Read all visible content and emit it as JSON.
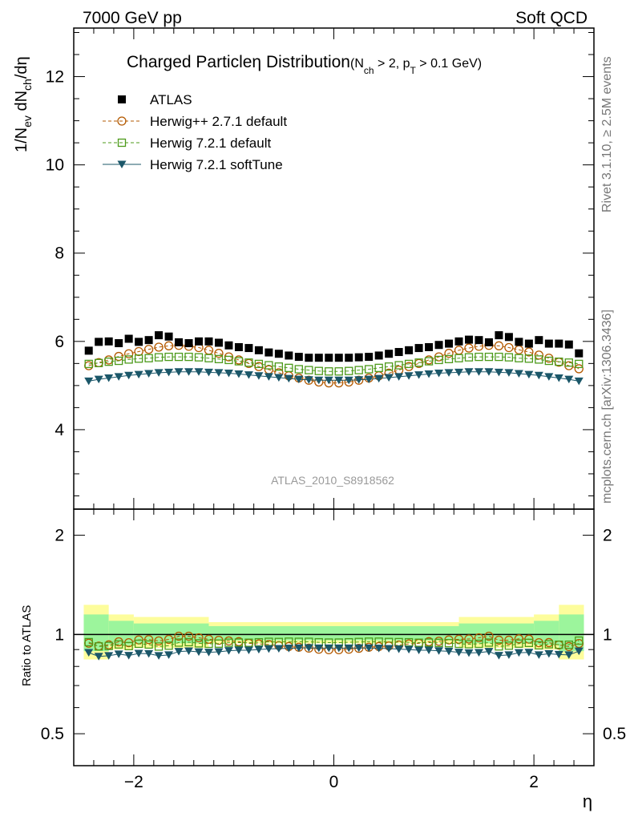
{
  "header": {
    "left": "7000 GeV pp",
    "right": "Soft QCD"
  },
  "side_text": {
    "rivet": "Rivet 3.1.10, ≥ 2.5M events",
    "mcplots": "mcplots.cern.ch [arXiv:1306.3436]"
  },
  "watermark": "ATLAS_2010_S8918562",
  "colors": {
    "atlas": "#000000",
    "herwigpp": "#b35900",
    "herwig721": "#4c9a1a",
    "softtune": "#1b5769",
    "band_outer": "#fdfd9c",
    "band_inner": "#9cf59c"
  },
  "chart_data": [
    {
      "type": "scatter",
      "panel": "main",
      "title_main": "Charged Particle",
      "title_eta": "η",
      "title_rest": " Distribution",
      "title_sub": "(N",
      "title_sub2": "ch",
      "title_sub3": " > 2, p",
      "title_sub4": "T",
      "title_sub5": " > 0.1 GeV)",
      "xlabel": "η",
      "ylabel": "1/N_ev dN_ch/dη",
      "xlim": [
        -2.6,
        2.6
      ],
      "ylim": [
        2.2,
        13.1
      ],
      "yticks": [
        4,
        6,
        8,
        10,
        12
      ],
      "ytick_labels": [
        "4",
        "6",
        "8",
        "10",
        "12"
      ],
      "xticks": [
        -2,
        0,
        2
      ],
      "xtick_labels": [
        "−2",
        "0",
        "2"
      ],
      "legend_position": "top-left",
      "x": [
        -2.45,
        -2.35,
        -2.25,
        -2.15,
        -2.05,
        -1.95,
        -1.85,
        -1.75,
        -1.65,
        -1.55,
        -1.45,
        -1.35,
        -1.25,
        -1.15,
        -1.05,
        -0.95,
        -0.85,
        -0.75,
        -0.65,
        -0.55,
        -0.45,
        -0.35,
        -0.25,
        -0.15,
        -0.05,
        0.05,
        0.15,
        0.25,
        0.35,
        0.45,
        0.55,
        0.65,
        0.75,
        0.85,
        0.95,
        1.05,
        1.15,
        1.25,
        1.35,
        1.45,
        1.55,
        1.65,
        1.75,
        1.85,
        1.95,
        2.05,
        2.15,
        2.25,
        2.35,
        2.45
      ],
      "series": [
        {
          "name": "ATLAS",
          "marker": "square-filled",
          "values": [
            5.79,
            5.99,
            6.0,
            5.96,
            6.06,
            5.99,
            6.03,
            6.14,
            6.11,
            5.98,
            5.96,
            6.0,
            6.0,
            5.97,
            5.91,
            5.87,
            5.85,
            5.8,
            5.75,
            5.72,
            5.68,
            5.65,
            5.63,
            5.63,
            5.63,
            5.63,
            5.63,
            5.64,
            5.65,
            5.68,
            5.72,
            5.76,
            5.8,
            5.85,
            5.87,
            5.92,
            5.95,
            6.0,
            6.04,
            6.03,
            5.98,
            6.14,
            6.1,
            5.99,
            5.95,
            6.03,
            5.95,
            5.95,
            5.93,
            5.73
          ]
        },
        {
          "name": "Herwig++ 2.7.1 default",
          "marker": "circle-open",
          "values": [
            5.45,
            5.52,
            5.58,
            5.66,
            5.72,
            5.77,
            5.82,
            5.87,
            5.9,
            5.91,
            5.89,
            5.86,
            5.8,
            5.73,
            5.65,
            5.58,
            5.5,
            5.43,
            5.36,
            5.29,
            5.22,
            5.17,
            5.12,
            5.08,
            5.06,
            5.06,
            5.08,
            5.12,
            5.17,
            5.22,
            5.28,
            5.35,
            5.43,
            5.5,
            5.58,
            5.65,
            5.73,
            5.8,
            5.85,
            5.89,
            5.91,
            5.9,
            5.86,
            5.81,
            5.76,
            5.69,
            5.62,
            5.53,
            5.45,
            5.38
          ]
        },
        {
          "name": "Herwig 7.2.1 default",
          "marker": "square-open",
          "values": [
            5.49,
            5.51,
            5.54,
            5.56,
            5.59,
            5.61,
            5.62,
            5.64,
            5.65,
            5.65,
            5.65,
            5.64,
            5.62,
            5.6,
            5.58,
            5.55,
            5.52,
            5.49,
            5.46,
            5.43,
            5.4,
            5.37,
            5.35,
            5.33,
            5.32,
            5.32,
            5.33,
            5.35,
            5.37,
            5.4,
            5.43,
            5.46,
            5.49,
            5.52,
            5.55,
            5.58,
            5.6,
            5.62,
            5.64,
            5.65,
            5.65,
            5.65,
            5.64,
            5.62,
            5.61,
            5.59,
            5.56,
            5.54,
            5.52,
            5.49
          ]
        },
        {
          "name": "Herwig 7.2.1 softTune",
          "marker": "triangle-down-filled",
          "values": [
            5.1,
            5.14,
            5.17,
            5.2,
            5.23,
            5.25,
            5.27,
            5.29,
            5.3,
            5.31,
            5.31,
            5.31,
            5.3,
            5.29,
            5.28,
            5.26,
            5.24,
            5.22,
            5.2,
            5.18,
            5.16,
            5.14,
            5.13,
            5.12,
            5.12,
            5.12,
            5.12,
            5.13,
            5.14,
            5.16,
            5.18,
            5.2,
            5.22,
            5.24,
            5.26,
            5.28,
            5.29,
            5.3,
            5.31,
            5.31,
            5.31,
            5.3,
            5.29,
            5.27,
            5.25,
            5.23,
            5.2,
            5.17,
            5.14,
            5.1
          ]
        }
      ]
    },
    {
      "type": "scatter",
      "panel": "ratio",
      "ylabel": "Ratio to ATLAS",
      "xlabel": "η",
      "xlim": [
        -2.6,
        2.6
      ],
      "ylim": [
        0.4,
        2.4
      ],
      "log_y": true,
      "yticks": [
        0.5,
        1,
        2
      ],
      "ytick_labels": [
        "0.5",
        "1",
        "2"
      ],
      "band_edges": [
        -2.5,
        -2.25,
        -2.0,
        -1.25,
        1.25,
        2.0,
        2.25,
        2.5
      ],
      "band_outer_up": [
        1.23,
        1.15,
        1.13,
        1.09,
        1.13,
        1.15,
        1.23
      ],
      "band_outer_down": [
        0.84,
        0.9,
        0.91,
        0.94,
        0.91,
        0.9,
        0.84
      ],
      "band_inner_up": [
        1.15,
        1.1,
        1.08,
        1.06,
        1.08,
        1.1,
        1.15
      ],
      "band_inner_down": [
        0.89,
        0.93,
        0.94,
        0.96,
        0.94,
        0.93,
        0.89
      ],
      "series": [
        {
          "name": "Herwig++ 2.7.1 default",
          "values": [
            0.941,
            0.922,
            0.93,
            0.95,
            0.944,
            0.963,
            0.965,
            0.956,
            0.966,
            0.988,
            0.988,
            0.977,
            0.967,
            0.96,
            0.956,
            0.951,
            0.94,
            0.936,
            0.932,
            0.925,
            0.919,
            0.915,
            0.909,
            0.902,
            0.899,
            0.899,
            0.902,
            0.908,
            0.915,
            0.919,
            0.923,
            0.929,
            0.936,
            0.94,
            0.951,
            0.954,
            0.963,
            0.967,
            0.969,
            0.977,
            0.988,
            0.961,
            0.961,
            0.97,
            0.968,
            0.944,
            0.945,
            0.929,
            0.919,
            0.939
          ]
        },
        {
          "name": "Herwig 7.2.1 default",
          "values": [
            0.948,
            0.92,
            0.923,
            0.933,
            0.922,
            0.937,
            0.932,
            0.919,
            0.925,
            0.945,
            0.948,
            0.94,
            0.937,
            0.938,
            0.944,
            0.945,
            0.944,
            0.947,
            0.95,
            0.949,
            0.951,
            0.95,
            0.95,
            0.947,
            0.945,
            0.945,
            0.947,
            0.949,
            0.951,
            0.951,
            0.949,
            0.948,
            0.947,
            0.944,
            0.945,
            0.943,
            0.941,
            0.937,
            0.934,
            0.937,
            0.945,
            0.92,
            0.925,
            0.938,
            0.943,
            0.927,
            0.934,
            0.931,
            0.931,
            0.958
          ]
        },
        {
          "name": "Herwig 7.2.1 softTune",
          "values": [
            0.881,
            0.858,
            0.862,
            0.872,
            0.863,
            0.876,
            0.874,
            0.862,
            0.867,
            0.888,
            0.891,
            0.885,
            0.883,
            0.886,
            0.893,
            0.896,
            0.896,
            0.9,
            0.904,
            0.906,
            0.908,
            0.91,
            0.911,
            0.909,
            0.909,
            0.909,
            0.909,
            0.91,
            0.91,
            0.908,
            0.906,
            0.903,
            0.9,
            0.896,
            0.896,
            0.892,
            0.889,
            0.883,
            0.879,
            0.881,
            0.888,
            0.863,
            0.867,
            0.88,
            0.882,
            0.867,
            0.874,
            0.869,
            0.867,
            0.89
          ]
        }
      ]
    }
  ]
}
